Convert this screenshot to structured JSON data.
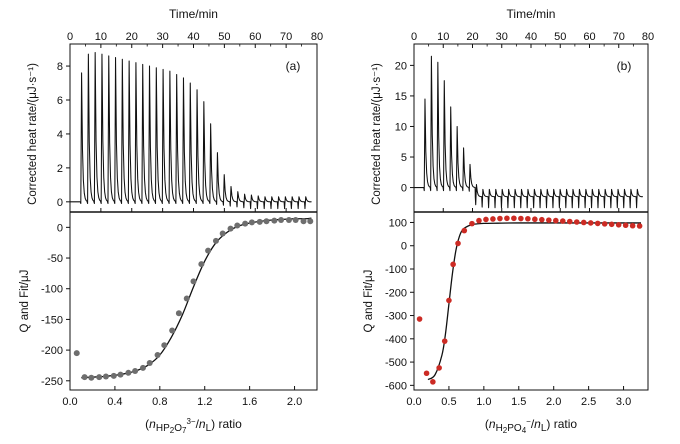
{
  "chart_data": [
    {
      "panel": "(a)",
      "top": {
        "type": "line",
        "title_label": "(a)",
        "xlabel": "Time/min",
        "ylabel": "Corrected heat rate/(μJ·s⁻¹)",
        "xlim": [
          0,
          80
        ],
        "ylim": [
          -0.6,
          9.3
        ],
        "xticks": [
          0,
          10,
          20,
          30,
          40,
          50,
          60,
          70,
          80
        ],
        "yticks": [
          0,
          2,
          4,
          6,
          8
        ],
        "injections": {
          "count": 34,
          "first_time": 3.5,
          "interval": 2.2,
          "baseline": 0,
          "peaks": [
            7.6,
            8.7,
            8.8,
            8.7,
            8.6,
            8.5,
            8.4,
            8.3,
            8.2,
            8.1,
            8.0,
            7.9,
            7.8,
            7.7,
            7.5,
            7.3,
            7.0,
            6.6,
            5.9,
            4.6,
            2.9,
            1.6,
            0.9,
            0.6,
            0.45,
            0.4,
            0.35,
            0.3,
            0.3,
            0.3,
            0.3,
            0.3,
            0.3,
            0.3
          ],
          "undershoots": [
            -0.1,
            -0.1,
            -0.1,
            -0.1,
            -0.1,
            -0.1,
            -0.1,
            -0.1,
            -0.1,
            -0.1,
            -0.1,
            -0.1,
            -0.1,
            -0.1,
            -0.1,
            -0.1,
            -0.1,
            -0.1,
            -0.1,
            -0.1,
            -0.15,
            -0.2,
            -0.25,
            -0.3,
            -0.35,
            -0.4,
            -0.4,
            -0.4,
            -0.4,
            -0.4,
            -0.4,
            -0.4,
            -0.4,
            -0.4
          ]
        }
      },
      "bottom": {
        "type": "scatter",
        "xlabel_parts": [
          "(",
          "n",
          "HP",
          "2",
          "O",
          "7",
          "3−",
          "/",
          "n",
          "L",
          ") ratio"
        ],
        "ylabel": "Q and Fit/μJ",
        "xlim": [
          0,
          2.2
        ],
        "ylim": [
          -265,
          25
        ],
        "xticks": [
          "0.0",
          "0.4",
          "0.8",
          "1.2",
          "1.6",
          "2.0"
        ],
        "yticks": [
          0,
          -50,
          -100,
          -150,
          -200,
          -250
        ],
        "points": [
          [
            0.06,
            -205
          ],
          [
            0.13,
            -244
          ],
          [
            0.19,
            -245
          ],
          [
            0.26,
            -244
          ],
          [
            0.32,
            -243
          ],
          [
            0.39,
            -242
          ],
          [
            0.45,
            -240
          ],
          [
            0.52,
            -237
          ],
          [
            0.58,
            -234
          ],
          [
            0.65,
            -229
          ],
          [
            0.71,
            -221
          ],
          [
            0.78,
            -208
          ],
          [
            0.84,
            -192
          ],
          [
            0.91,
            -168
          ],
          [
            0.97,
            -140
          ],
          [
            1.04,
            -116
          ],
          [
            1.1,
            -88
          ],
          [
            1.17,
            -60
          ],
          [
            1.23,
            -38
          ],
          [
            1.3,
            -22
          ],
          [
            1.36,
            -10
          ],
          [
            1.43,
            -2
          ],
          [
            1.49,
            3
          ],
          [
            1.56,
            6
          ],
          [
            1.62,
            8
          ],
          [
            1.69,
            9
          ],
          [
            1.75,
            10
          ],
          [
            1.82,
            11
          ],
          [
            1.88,
            12
          ],
          [
            1.95,
            12
          ],
          [
            2.01,
            12
          ],
          [
            2.08,
            10
          ],
          [
            2.14,
            10
          ]
        ],
        "fit": {
          "x": [
            0.1,
            0.2,
            0.3,
            0.4,
            0.5,
            0.6,
            0.7,
            0.8,
            0.9,
            1.0,
            1.1,
            1.2,
            1.3,
            1.4,
            1.5,
            1.6,
            1.7,
            1.8,
            1.9,
            2.0,
            2.1,
            2.15
          ],
          "y": [
            -245,
            -244,
            -243,
            -241,
            -238,
            -233,
            -224,
            -208,
            -180,
            -143,
            -97,
            -55,
            -25,
            -8,
            2,
            7,
            10,
            12,
            13,
            14,
            14,
            15
          ]
        }
      }
    },
    {
      "panel": "(b)",
      "top": {
        "type": "line",
        "title_label": "(b)",
        "xlabel": "Time/min",
        "ylabel": "Corrected heat rate/(μJ·s⁻¹)",
        "xlim": [
          0,
          80
        ],
        "ylim": [
          -4,
          23.5
        ],
        "xticks": [
          0,
          10,
          20,
          30,
          40,
          50,
          60,
          70,
          80
        ],
        "yticks": [
          0,
          5,
          10,
          15,
          20
        ],
        "injections": {
          "count": 34,
          "first_time": 3.5,
          "interval": 2.2,
          "baseline": 0,
          "baseline_after": -1.5,
          "peaks": [
            14.5,
            21.5,
            20.5,
            17.5,
            13.2,
            10.0,
            6.5,
            3.8,
            0.5,
            -0.3,
            -0.3,
            -0.3,
            -0.3,
            -0.3,
            -0.3,
            -0.3,
            -0.3,
            -0.3,
            -0.3,
            -0.3,
            -0.3,
            -0.3,
            -0.3,
            -0.3,
            -0.3,
            -0.3,
            -0.3,
            -0.3,
            -0.3,
            -0.3,
            -0.3,
            -0.3,
            -0.3,
            -0.3
          ],
          "undershoots": [
            -0.5,
            -0.5,
            -0.5,
            -0.5,
            -0.5,
            -0.5,
            -0.5,
            -0.6,
            -2.8,
            -3.2,
            -3.3,
            -3.3,
            -3.3,
            -3.3,
            -3.3,
            -3.3,
            -3.3,
            -3.3,
            -3.3,
            -3.3,
            -3.3,
            -3.3,
            -3.3,
            -3.3,
            -3.3,
            -3.3,
            -3.3,
            -3.3,
            -3.3,
            -3.3,
            -3.3,
            -3.3,
            -3.3,
            -3.3
          ]
        }
      },
      "bottom": {
        "type": "scatter",
        "xlabel_parts": [
          "(",
          "n",
          "H",
          "2",
          "PO",
          "4",
          "−",
          "/",
          "n",
          "L",
          ") ratio"
        ],
        "ylabel": "Q and Fit/μJ",
        "xlim": [
          0,
          3.35
        ],
        "ylim": [
          -620,
          145
        ],
        "xticks": [
          "0.0",
          "0.5",
          "1.0",
          "1.5",
          "2.0",
          "2.5",
          "3.0"
        ],
        "yticks": [
          100,
          0,
          -100,
          -200,
          -300,
          -400,
          -500,
          -600
        ],
        "points": [
          [
            0.08,
            -315
          ],
          [
            0.18,
            -548
          ],
          [
            0.27,
            -585
          ],
          [
            0.36,
            -525
          ],
          [
            0.44,
            -410
          ],
          [
            0.5,
            -235
          ],
          [
            0.56,
            -80
          ],
          [
            0.63,
            10
          ],
          [
            0.72,
            65
          ],
          [
            0.83,
            95
          ],
          [
            0.93,
            108
          ],
          [
            1.03,
            113
          ],
          [
            1.13,
            115
          ],
          [
            1.23,
            117
          ],
          [
            1.33,
            118
          ],
          [
            1.43,
            118
          ],
          [
            1.53,
            117
          ],
          [
            1.63,
            116
          ],
          [
            1.73,
            114
          ],
          [
            1.83,
            112
          ],
          [
            1.93,
            110
          ],
          [
            2.03,
            108
          ],
          [
            2.13,
            106
          ],
          [
            2.23,
            104
          ],
          [
            2.33,
            102
          ],
          [
            2.43,
            100
          ],
          [
            2.53,
            98
          ],
          [
            2.63,
            96
          ],
          [
            2.73,
            94
          ],
          [
            2.83,
            92
          ],
          [
            2.93,
            90
          ],
          [
            3.03,
            88
          ],
          [
            3.13,
            86
          ],
          [
            3.23,
            85
          ]
        ],
        "fit": {
          "x": [
            0.2,
            0.3,
            0.4,
            0.45,
            0.5,
            0.55,
            0.6,
            0.65,
            0.7,
            0.8,
            0.9,
            1.0,
            1.2,
            1.5,
            2.0,
            2.5,
            3.0,
            3.25
          ],
          "y": [
            -575,
            -555,
            -470,
            -380,
            -250,
            -120,
            -20,
            40,
            70,
            88,
            94,
            96,
            97,
            98,
            98,
            98,
            98,
            98
          ]
        }
      }
    }
  ]
}
